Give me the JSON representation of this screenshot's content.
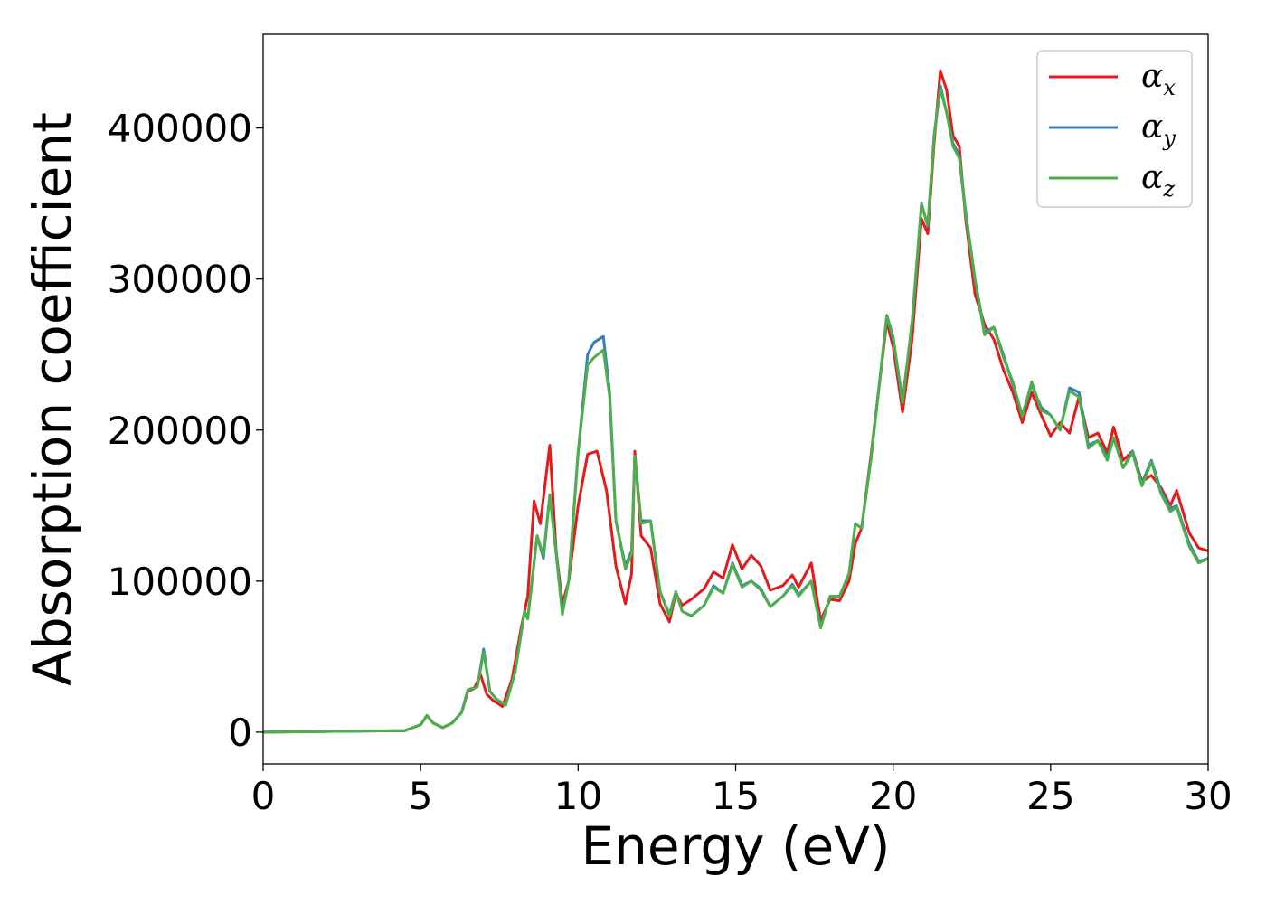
{
  "chart_data": {
    "type": "line",
    "title": "",
    "xlabel": "Energy (eV)",
    "ylabel": "Absorption coefficient",
    "xlim": [
      0,
      30
    ],
    "ylim": [
      -21000,
      462000
    ],
    "xticks": [
      0,
      5,
      10,
      15,
      20,
      25,
      30
    ],
    "xtick_labels": [
      "0",
      "5",
      "10",
      "15",
      "20",
      "25",
      "30"
    ],
    "yticks": [
      0,
      100000,
      200000,
      300000,
      400000
    ],
    "ytick_labels": [
      "0",
      "100000",
      "200000",
      "300000",
      "400000"
    ],
    "grid": false,
    "legend": "top-right",
    "series": [
      {
        "name": "α_x",
        "base": "α",
        "sub": "x",
        "color": "#e41a1c",
        "points": [
          [
            0,
            0
          ],
          [
            4.5,
            1000
          ],
          [
            5.0,
            5000
          ],
          [
            5.2,
            11000
          ],
          [
            5.4,
            6000
          ],
          [
            5.7,
            3000
          ],
          [
            6.0,
            6000
          ],
          [
            6.3,
            13000
          ],
          [
            6.5,
            27000
          ],
          [
            6.7,
            29000
          ],
          [
            6.9,
            38000
          ],
          [
            7.1,
            25000
          ],
          [
            7.3,
            21000
          ],
          [
            7.6,
            17000
          ],
          [
            7.9,
            35000
          ],
          [
            8.2,
            70000
          ],
          [
            8.4,
            90000
          ],
          [
            8.6,
            153000
          ],
          [
            8.8,
            138000
          ],
          [
            9.1,
            190000
          ],
          [
            9.3,
            120000
          ],
          [
            9.5,
            85000
          ],
          [
            9.7,
            100000
          ],
          [
            10.0,
            150000
          ],
          [
            10.3,
            184000
          ],
          [
            10.6,
            186000
          ],
          [
            10.9,
            160000
          ],
          [
            11.2,
            110000
          ],
          [
            11.5,
            85000
          ],
          [
            11.7,
            105000
          ],
          [
            11.8,
            186000
          ],
          [
            12.0,
            130000
          ],
          [
            12.3,
            122000
          ],
          [
            12.6,
            85000
          ],
          [
            12.9,
            73000
          ],
          [
            13.1,
            92000
          ],
          [
            13.3,
            84000
          ],
          [
            13.6,
            88000
          ],
          [
            14.0,
            95000
          ],
          [
            14.3,
            106000
          ],
          [
            14.6,
            102000
          ],
          [
            14.9,
            124000
          ],
          [
            15.2,
            108000
          ],
          [
            15.5,
            117000
          ],
          [
            15.8,
            110000
          ],
          [
            16.1,
            94000
          ],
          [
            16.5,
            97000
          ],
          [
            16.8,
            104000
          ],
          [
            17.0,
            96000
          ],
          [
            17.4,
            112000
          ],
          [
            17.7,
            74000
          ],
          [
            18.0,
            88000
          ],
          [
            18.3,
            87000
          ],
          [
            18.6,
            100000
          ],
          [
            18.8,
            125000
          ],
          [
            19.0,
            135000
          ],
          [
            19.3,
            184000
          ],
          [
            19.8,
            272000
          ],
          [
            20.0,
            255000
          ],
          [
            20.3,
            212000
          ],
          [
            20.6,
            260000
          ],
          [
            20.9,
            340000
          ],
          [
            21.1,
            330000
          ],
          [
            21.3,
            390000
          ],
          [
            21.5,
            438000
          ],
          [
            21.7,
            425000
          ],
          [
            21.9,
            395000
          ],
          [
            22.1,
            388000
          ],
          [
            22.3,
            340000
          ],
          [
            22.6,
            290000
          ],
          [
            22.9,
            270000
          ],
          [
            23.2,
            260000
          ],
          [
            23.5,
            240000
          ],
          [
            23.8,
            225000
          ],
          [
            24.1,
            205000
          ],
          [
            24.4,
            225000
          ],
          [
            24.7,
            210000
          ],
          [
            25.0,
            196000
          ],
          [
            25.3,
            205000
          ],
          [
            25.6,
            198000
          ],
          [
            25.9,
            222000
          ],
          [
            26.2,
            195000
          ],
          [
            26.5,
            198000
          ],
          [
            26.8,
            185000
          ],
          [
            27.0,
            202000
          ],
          [
            27.3,
            180000
          ],
          [
            27.6,
            186000
          ],
          [
            27.9,
            166000
          ],
          [
            28.2,
            170000
          ],
          [
            28.5,
            162000
          ],
          [
            28.8,
            150000
          ],
          [
            29.0,
            160000
          ],
          [
            29.4,
            132000
          ],
          [
            29.7,
            122000
          ],
          [
            30.0,
            120000
          ]
        ]
      },
      {
        "name": "α_y",
        "base": "α",
        "sub": "y",
        "color": "#377eb8",
        "points": [
          [
            0,
            0
          ],
          [
            4.5,
            1000
          ],
          [
            5.0,
            5000
          ],
          [
            5.2,
            11000
          ],
          [
            5.4,
            6000
          ],
          [
            5.7,
            3000
          ],
          [
            6.0,
            6000
          ],
          [
            6.3,
            13000
          ],
          [
            6.5,
            28000
          ],
          [
            6.8,
            30000
          ],
          [
            7.0,
            55000
          ],
          [
            7.2,
            27000
          ],
          [
            7.4,
            22000
          ],
          [
            7.7,
            18000
          ],
          [
            8.0,
            40000
          ],
          [
            8.3,
            80000
          ],
          [
            8.4,
            75000
          ],
          [
            8.7,
            130000
          ],
          [
            8.9,
            115000
          ],
          [
            9.1,
            157000
          ],
          [
            9.3,
            120000
          ],
          [
            9.5,
            80000
          ],
          [
            9.7,
            100000
          ],
          [
            10.0,
            185000
          ],
          [
            10.3,
            250000
          ],
          [
            10.5,
            258000
          ],
          [
            10.8,
            262000
          ],
          [
            11.0,
            225000
          ],
          [
            11.2,
            140000
          ],
          [
            11.5,
            110000
          ],
          [
            11.7,
            120000
          ],
          [
            11.8,
            183000
          ],
          [
            12.0,
            140000
          ],
          [
            12.3,
            140000
          ],
          [
            12.6,
            93000
          ],
          [
            12.9,
            78000
          ],
          [
            13.1,
            93000
          ],
          [
            13.3,
            80000
          ],
          [
            13.6,
            77000
          ],
          [
            14.0,
            84000
          ],
          [
            14.3,
            97000
          ],
          [
            14.6,
            92000
          ],
          [
            14.9,
            112000
          ],
          [
            15.2,
            97000
          ],
          [
            15.5,
            100000
          ],
          [
            15.8,
            95000
          ],
          [
            16.1,
            83000
          ],
          [
            16.5,
            90000
          ],
          [
            16.8,
            98000
          ],
          [
            17.0,
            91000
          ],
          [
            17.4,
            100000
          ],
          [
            17.7,
            70000
          ],
          [
            18.0,
            90000
          ],
          [
            18.3,
            90000
          ],
          [
            18.6,
            105000
          ],
          [
            18.8,
            138000
          ],
          [
            19.0,
            135000
          ],
          [
            19.3,
            182000
          ],
          [
            19.8,
            275000
          ],
          [
            20.0,
            260000
          ],
          [
            20.3,
            220000
          ],
          [
            20.6,
            270000
          ],
          [
            20.9,
            350000
          ],
          [
            21.1,
            335000
          ],
          [
            21.3,
            395000
          ],
          [
            21.5,
            428000
          ],
          [
            21.7,
            410000
          ],
          [
            21.9,
            390000
          ],
          [
            22.1,
            382000
          ],
          [
            22.3,
            345000
          ],
          [
            22.6,
            300000
          ],
          [
            22.9,
            265000
          ],
          [
            23.2,
            268000
          ],
          [
            23.5,
            250000
          ],
          [
            23.8,
            230000
          ],
          [
            24.1,
            210000
          ],
          [
            24.4,
            230000
          ],
          [
            24.7,
            215000
          ],
          [
            25.0,
            210000
          ],
          [
            25.3,
            200000
          ],
          [
            25.6,
            228000
          ],
          [
            25.9,
            225000
          ],
          [
            26.2,
            190000
          ],
          [
            26.5,
            193000
          ],
          [
            26.8,
            182000
          ],
          [
            27.0,
            195000
          ],
          [
            27.3,
            175000
          ],
          [
            27.6,
            186000
          ],
          [
            27.9,
            165000
          ],
          [
            28.2,
            180000
          ],
          [
            28.5,
            160000
          ],
          [
            28.8,
            148000
          ],
          [
            29.0,
            150000
          ],
          [
            29.4,
            125000
          ],
          [
            29.7,
            113000
          ],
          [
            30.0,
            115000
          ]
        ]
      },
      {
        "name": "α_z",
        "base": "α",
        "sub": "z",
        "color": "#4daf4a",
        "points": [
          [
            0,
            0
          ],
          [
            4.5,
            1000
          ],
          [
            5.0,
            5000
          ],
          [
            5.2,
            11000
          ],
          [
            5.4,
            6000
          ],
          [
            5.7,
            3000
          ],
          [
            6.0,
            6000
          ],
          [
            6.3,
            13000
          ],
          [
            6.5,
            28000
          ],
          [
            6.8,
            30000
          ],
          [
            7.0,
            53000
          ],
          [
            7.2,
            27000
          ],
          [
            7.4,
            22000
          ],
          [
            7.7,
            18000
          ],
          [
            8.0,
            40000
          ],
          [
            8.3,
            80000
          ],
          [
            8.4,
            75000
          ],
          [
            8.7,
            130000
          ],
          [
            8.9,
            117000
          ],
          [
            9.1,
            157000
          ],
          [
            9.3,
            118000
          ],
          [
            9.5,
            78000
          ],
          [
            9.7,
            100000
          ],
          [
            10.0,
            185000
          ],
          [
            10.3,
            243000
          ],
          [
            10.5,
            248000
          ],
          [
            10.8,
            253000
          ],
          [
            11.0,
            222000
          ],
          [
            11.2,
            140000
          ],
          [
            11.5,
            108000
          ],
          [
            11.7,
            118000
          ],
          [
            11.8,
            183000
          ],
          [
            12.0,
            138000
          ],
          [
            12.3,
            140000
          ],
          [
            12.6,
            93000
          ],
          [
            12.9,
            77000
          ],
          [
            13.1,
            93000
          ],
          [
            13.3,
            80000
          ],
          [
            13.6,
            77000
          ],
          [
            14.0,
            84000
          ],
          [
            14.3,
            96000
          ],
          [
            14.6,
            92000
          ],
          [
            14.9,
            111000
          ],
          [
            15.2,
            96000
          ],
          [
            15.5,
            100000
          ],
          [
            15.8,
            94000
          ],
          [
            16.1,
            83000
          ],
          [
            16.5,
            90000
          ],
          [
            16.8,
            97000
          ],
          [
            17.0,
            90000
          ],
          [
            17.4,
            100000
          ],
          [
            17.7,
            69000
          ],
          [
            18.0,
            90000
          ],
          [
            18.3,
            90000
          ],
          [
            18.6,
            105000
          ],
          [
            18.8,
            138000
          ],
          [
            19.0,
            135000
          ],
          [
            19.3,
            181000
          ],
          [
            19.8,
            276000
          ],
          [
            20.0,
            262000
          ],
          [
            20.3,
            218000
          ],
          [
            20.6,
            272000
          ],
          [
            20.9,
            349000
          ],
          [
            21.1,
            336000
          ],
          [
            21.3,
            395000
          ],
          [
            21.5,
            426000
          ],
          [
            21.7,
            410000
          ],
          [
            21.9,
            388000
          ],
          [
            22.1,
            380000
          ],
          [
            22.3,
            343000
          ],
          [
            22.6,
            300000
          ],
          [
            22.9,
            263000
          ],
          [
            23.2,
            268000
          ],
          [
            23.5,
            248000
          ],
          [
            23.8,
            232000
          ],
          [
            24.1,
            209000
          ],
          [
            24.4,
            232000
          ],
          [
            24.7,
            213000
          ],
          [
            25.0,
            210000
          ],
          [
            25.3,
            200000
          ],
          [
            25.6,
            226000
          ],
          [
            25.9,
            222000
          ],
          [
            26.2,
            188000
          ],
          [
            26.5,
            193000
          ],
          [
            26.8,
            180000
          ],
          [
            27.0,
            195000
          ],
          [
            27.3,
            175000
          ],
          [
            27.6,
            185000
          ],
          [
            27.9,
            163000
          ],
          [
            28.2,
            179000
          ],
          [
            28.5,
            158000
          ],
          [
            28.8,
            146000
          ],
          [
            29.0,
            149000
          ],
          [
            29.4,
            123000
          ],
          [
            29.7,
            112000
          ],
          [
            30.0,
            115000
          ]
        ]
      }
    ]
  }
}
